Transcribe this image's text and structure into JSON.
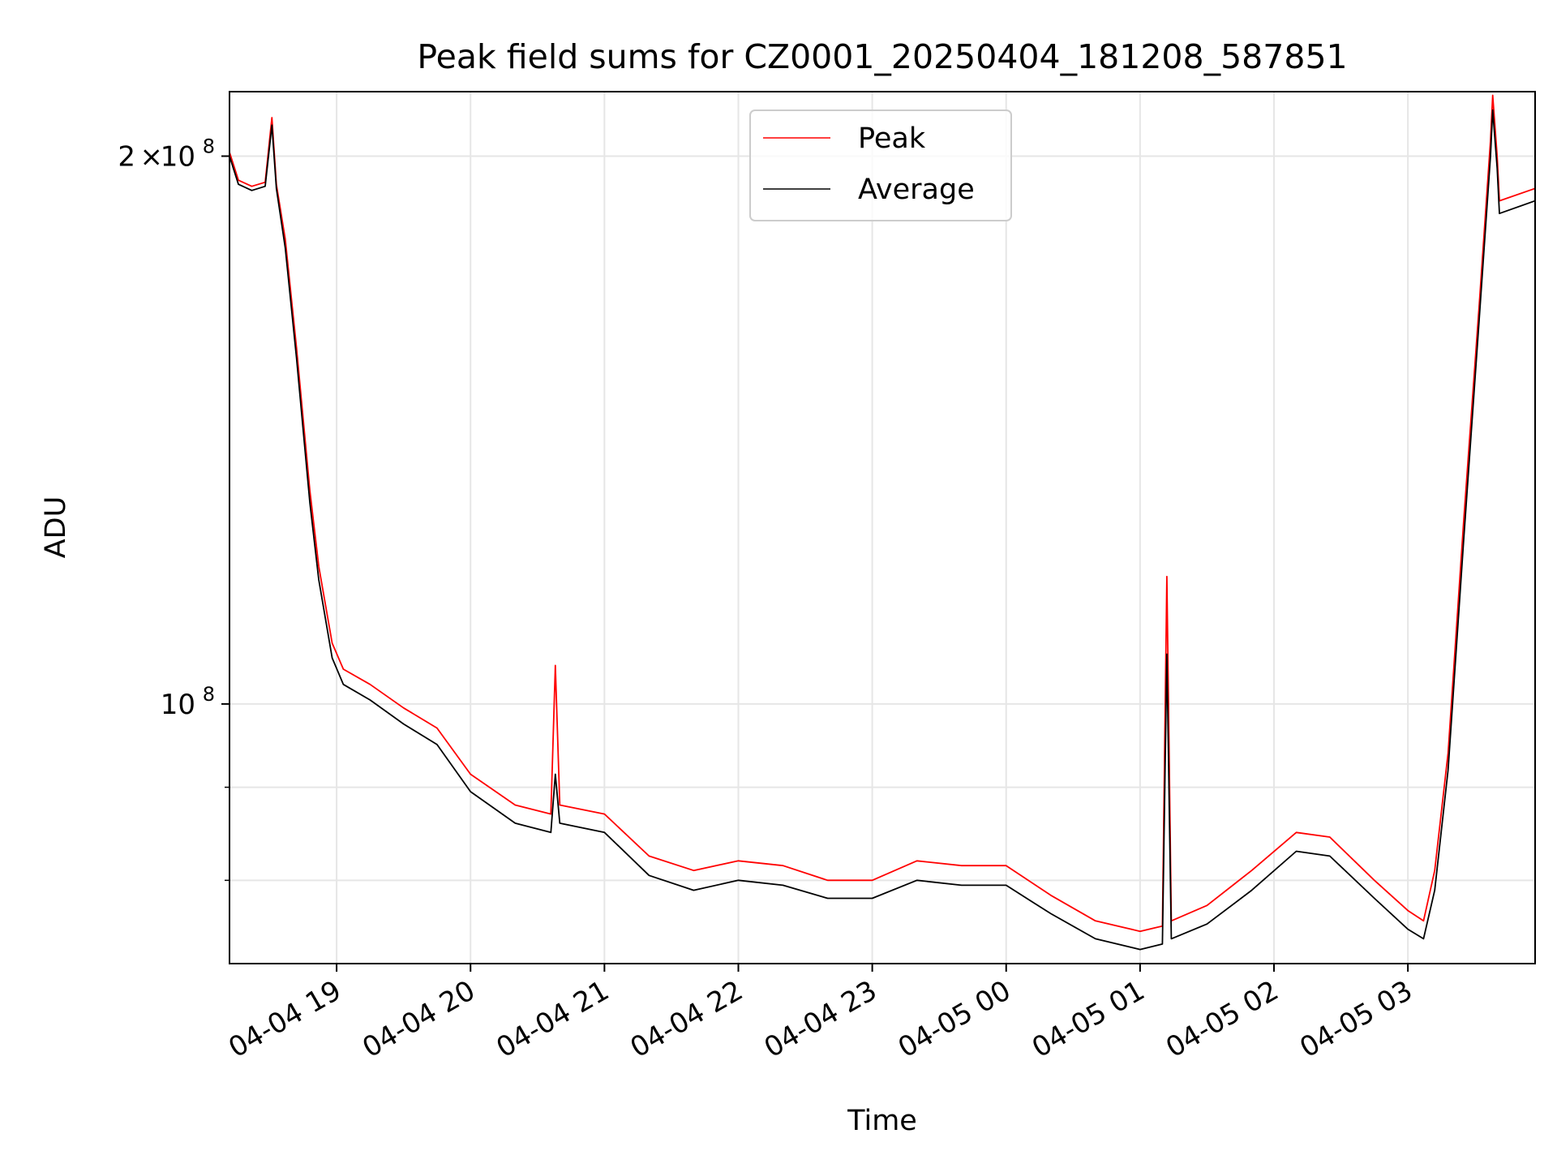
{
  "chart_data": {
    "type": "line",
    "title": "Peak field sums for CZ0001_20250404_181208_587851",
    "xlabel": "Time",
    "ylabel": "ADU",
    "yscale": "log",
    "xlim": [
      "2025-04-04 18:12",
      "2025-04-05 03:57"
    ],
    "ylim": [
      72000000,
      217000000
    ],
    "grid": true,
    "legend_position": "top-center",
    "x_ticks": [
      {
        "time": "2025-04-04 19:00",
        "label": "04-04 19"
      },
      {
        "time": "2025-04-04 20:00",
        "label": "04-04 20"
      },
      {
        "time": "2025-04-04 21:00",
        "label": "04-04 21"
      },
      {
        "time": "2025-04-04 22:00",
        "label": "04-04 22"
      },
      {
        "time": "2025-04-04 23:00",
        "label": "04-04 23"
      },
      {
        "time": "2025-04-05 00:00",
        "label": "04-05 00"
      },
      {
        "time": "2025-04-05 01:00",
        "label": "04-05 01"
      },
      {
        "time": "2025-04-05 02:00",
        "label": "04-05 02"
      },
      {
        "time": "2025-04-05 03:00",
        "label": "04-05 03"
      }
    ],
    "y_ticks": [
      {
        "value": 200000000,
        "mantissa": "2",
        "times": "×",
        "base": "10",
        "exp": "8"
      },
      {
        "value": 100000000,
        "mantissa": "",
        "times": "",
        "base": "10",
        "exp": "8"
      }
    ],
    "y_minor_ticks": [
      80000000,
      90000000
    ],
    "series": [
      {
        "name": "Peak",
        "color": "#ff0000",
        "points": [
          [
            "2025-04-04 18:12",
            201000000
          ],
          [
            "2025-04-04 18:16",
            194000000
          ],
          [
            "2025-04-04 18:22",
            192500000
          ],
          [
            "2025-04-04 18:28",
            193500000
          ],
          [
            "2025-04-04 18:31",
            210000000
          ],
          [
            "2025-04-04 18:33",
            193000000
          ],
          [
            "2025-04-04 18:37",
            180000000
          ],
          [
            "2025-04-04 18:42",
            157000000
          ],
          [
            "2025-04-04 18:48",
            131000000
          ],
          [
            "2025-04-04 18:52",
            119000000
          ],
          [
            "2025-04-04 18:58",
            108000000
          ],
          [
            "2025-04-04 19:03",
            104500000
          ],
          [
            "2025-04-04 19:15",
            102500000
          ],
          [
            "2025-04-04 19:30",
            99500000
          ],
          [
            "2025-04-04 19:45",
            97000000
          ],
          [
            "2025-04-04 20:00",
            91500000
          ],
          [
            "2025-04-04 20:20",
            88000000
          ],
          [
            "2025-04-04 20:36",
            87000000
          ],
          [
            "2025-04-04 20:38",
            105000000
          ],
          [
            "2025-04-04 20:40",
            88000000
          ],
          [
            "2025-04-04 21:00",
            87000000
          ],
          [
            "2025-04-04 21:20",
            82500000
          ],
          [
            "2025-04-04 21:40",
            81000000
          ],
          [
            "2025-04-04 22:00",
            82000000
          ],
          [
            "2025-04-04 22:20",
            81500000
          ],
          [
            "2025-04-04 22:40",
            80000000
          ],
          [
            "2025-04-04 23:00",
            80000000
          ],
          [
            "2025-04-04 23:20",
            82000000
          ],
          [
            "2025-04-04 23:40",
            81500000
          ],
          [
            "2025-04-05 00:00",
            81500000
          ],
          [
            "2025-04-05 00:20",
            78500000
          ],
          [
            "2025-04-05 00:40",
            76000000
          ],
          [
            "2025-04-05 01:00",
            75000000
          ],
          [
            "2025-04-05 01:10",
            75500000
          ],
          [
            "2025-04-05 01:12",
            117500000
          ],
          [
            "2025-04-05 01:14",
            76000000
          ],
          [
            "2025-04-05 01:30",
            77500000
          ],
          [
            "2025-04-05 01:50",
            81000000
          ],
          [
            "2025-04-05 02:10",
            85000000
          ],
          [
            "2025-04-05 02:25",
            84500000
          ],
          [
            "2025-04-05 02:45",
            80000000
          ],
          [
            "2025-04-05 03:00",
            77000000
          ],
          [
            "2025-04-05 03:07",
            76000000
          ],
          [
            "2025-04-05 03:12",
            81000000
          ],
          [
            "2025-04-05 03:18",
            94000000
          ],
          [
            "2025-04-05 03:25",
            126000000
          ],
          [
            "2025-04-05 03:32",
            166000000
          ],
          [
            "2025-04-05 03:37",
            204000000
          ],
          [
            "2025-04-05 03:38",
            216000000
          ],
          [
            "2025-04-05 03:40",
            200000000
          ],
          [
            "2025-04-05 03:41",
            189000000
          ],
          [
            "2025-04-05 03:57",
            192000000
          ]
        ]
      },
      {
        "name": "Average",
        "color": "#000000",
        "points": [
          [
            "2025-04-04 18:12",
            200000000
          ],
          [
            "2025-04-04 18:16",
            193000000
          ],
          [
            "2025-04-04 18:22",
            191500000
          ],
          [
            "2025-04-04 18:28",
            192500000
          ],
          [
            "2025-04-04 18:31",
            208000000
          ],
          [
            "2025-04-04 18:33",
            192000000
          ],
          [
            "2025-04-04 18:37",
            178000000
          ],
          [
            "2025-04-04 18:42",
            155000000
          ],
          [
            "2025-04-04 18:48",
            129000000
          ],
          [
            "2025-04-04 18:52",
            117000000
          ],
          [
            "2025-04-04 18:58",
            106000000
          ],
          [
            "2025-04-04 19:03",
            102500000
          ],
          [
            "2025-04-04 19:15",
            100500000
          ],
          [
            "2025-04-04 19:30",
            97500000
          ],
          [
            "2025-04-04 19:45",
            95000000
          ],
          [
            "2025-04-04 20:00",
            89500000
          ],
          [
            "2025-04-04 20:20",
            86000000
          ],
          [
            "2025-04-04 20:36",
            85000000
          ],
          [
            "2025-04-04 20:38",
            91500000
          ],
          [
            "2025-04-04 20:40",
            86000000
          ],
          [
            "2025-04-04 21:00",
            85000000
          ],
          [
            "2025-04-04 21:20",
            80500000
          ],
          [
            "2025-04-04 21:40",
            79000000
          ],
          [
            "2025-04-04 22:00",
            80000000
          ],
          [
            "2025-04-04 22:20",
            79500000
          ],
          [
            "2025-04-04 22:40",
            78200000
          ],
          [
            "2025-04-04 23:00",
            78200000
          ],
          [
            "2025-04-04 23:20",
            80000000
          ],
          [
            "2025-04-04 23:40",
            79500000
          ],
          [
            "2025-04-05 00:00",
            79500000
          ],
          [
            "2025-04-05 00:20",
            76700000
          ],
          [
            "2025-04-05 00:40",
            74300000
          ],
          [
            "2025-04-05 01:00",
            73300000
          ],
          [
            "2025-04-05 01:10",
            73800000
          ],
          [
            "2025-04-05 01:12",
            106500000
          ],
          [
            "2025-04-05 01:14",
            74300000
          ],
          [
            "2025-04-05 01:30",
            75700000
          ],
          [
            "2025-04-05 01:50",
            79000000
          ],
          [
            "2025-04-05 02:10",
            83000000
          ],
          [
            "2025-04-05 02:25",
            82500000
          ],
          [
            "2025-04-05 02:45",
            78200000
          ],
          [
            "2025-04-05 03:00",
            75200000
          ],
          [
            "2025-04-05 03:07",
            74300000
          ],
          [
            "2025-04-05 03:12",
            79000000
          ],
          [
            "2025-04-05 03:18",
            92000000
          ],
          [
            "2025-04-05 03:25",
            123000000
          ],
          [
            "2025-04-05 03:32",
            163000000
          ],
          [
            "2025-04-05 03:37",
            200000000
          ],
          [
            "2025-04-05 03:38",
            212000000
          ],
          [
            "2025-04-05 03:40",
            197000000
          ],
          [
            "2025-04-05 03:41",
            186000000
          ],
          [
            "2025-04-05 03:57",
            189000000
          ]
        ]
      }
    ]
  }
}
